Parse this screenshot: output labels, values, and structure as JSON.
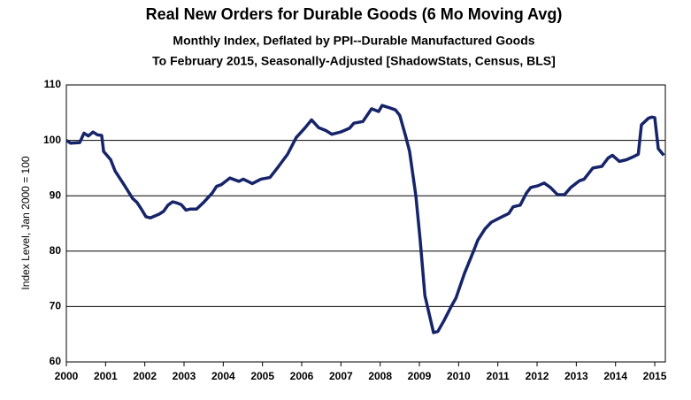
{
  "chart_data": {
    "type": "line",
    "title": "Real New Orders for Durable Goods (6 Mo Moving Avg)",
    "subtitle": [
      "Monthly Index, Deflated by PPI--Durable Manufactured Goods",
      "To February 2015, Seasonally-Adjusted [ShadowStats, Census, BLS]"
    ],
    "y_label": "Index Level, Jan 2000 = 100",
    "xlim": [
      2000,
      2015.27
    ],
    "xticks": [
      2000,
      2001,
      2002,
      2003,
      2004,
      2005,
      2006,
      2007,
      2008,
      2009,
      2010,
      2011,
      2012,
      2013,
      2014,
      2015
    ],
    "ylim": [
      60,
      110
    ],
    "yticks": [
      60,
      70,
      80,
      90,
      100,
      110
    ],
    "grid": true,
    "series": [
      {
        "color": "#16246a",
        "x": [
          2000.0,
          2000.11,
          2000.34,
          2000.45,
          2000.56,
          2000.68,
          2000.79,
          2000.9,
          2000.95,
          2001.13,
          2001.24,
          2001.47,
          2001.69,
          2001.8,
          2001.92,
          2002.03,
          2002.14,
          2002.37,
          2002.48,
          2002.59,
          2002.71,
          2002.82,
          2002.93,
          2003.05,
          2003.16,
          2003.32,
          2003.5,
          2003.72,
          2003.83,
          2003.95,
          2004.17,
          2004.4,
          2004.51,
          2004.74,
          2004.96,
          2005.19,
          2005.41,
          2005.64,
          2005.86,
          2006.09,
          2006.25,
          2006.43,
          2006.61,
          2006.77,
          2006.99,
          2007.22,
          2007.33,
          2007.56,
          2007.78,
          2007.96,
          2008.05,
          2008.23,
          2008.39,
          2008.5,
          2008.64,
          2008.75,
          2008.91,
          2009.02,
          2009.14,
          2009.36,
          2009.47,
          2009.63,
          2009.81,
          2009.93,
          2010.15,
          2010.38,
          2010.49,
          2010.67,
          2010.83,
          2011.05,
          2011.28,
          2011.39,
          2011.57,
          2011.73,
          2011.84,
          2012.02,
          2012.18,
          2012.34,
          2012.52,
          2012.7,
          2012.86,
          2013.08,
          2013.2,
          2013.42,
          2013.65,
          2013.81,
          2013.92,
          2014.1,
          2014.28,
          2014.44,
          2014.58,
          2014.66,
          2014.84,
          2014.93,
          2015.0,
          2015.09,
          2015.23
        ],
        "values": [
          100,
          99.5,
          99.6,
          101.3,
          100.8,
          101.5,
          101,
          100.9,
          98,
          96.5,
          94.5,
          92,
          89.5,
          88.8,
          87.5,
          86.2,
          86,
          86.7,
          87.2,
          88.3,
          88.9,
          88.7,
          88.4,
          87.4,
          87.6,
          87.6,
          88.8,
          90.5,
          91.7,
          92,
          93.2,
          92.6,
          93,
          92.2,
          93,
          93.3,
          95.3,
          97.5,
          100.5,
          102.3,
          103.7,
          102.3,
          101.8,
          101.1,
          101.5,
          102.2,
          103.1,
          103.4,
          105.7,
          105.2,
          106.3,
          105.9,
          105.5,
          104.5,
          101,
          98,
          90,
          82,
          72,
          65.3,
          65.5,
          67.5,
          70,
          71.5,
          76,
          80,
          82,
          84,
          85.2,
          86,
          86.8,
          88,
          88.3,
          90.5,
          91.5,
          91.8,
          92.3,
          91.5,
          90.2,
          90.2,
          91.5,
          92.7,
          93,
          95,
          95.3,
          96.8,
          97.3,
          96.2,
          96.5,
          97,
          97.5,
          102.8,
          104,
          104.2,
          104.1,
          98.5,
          97.3
        ]
      }
    ]
  }
}
